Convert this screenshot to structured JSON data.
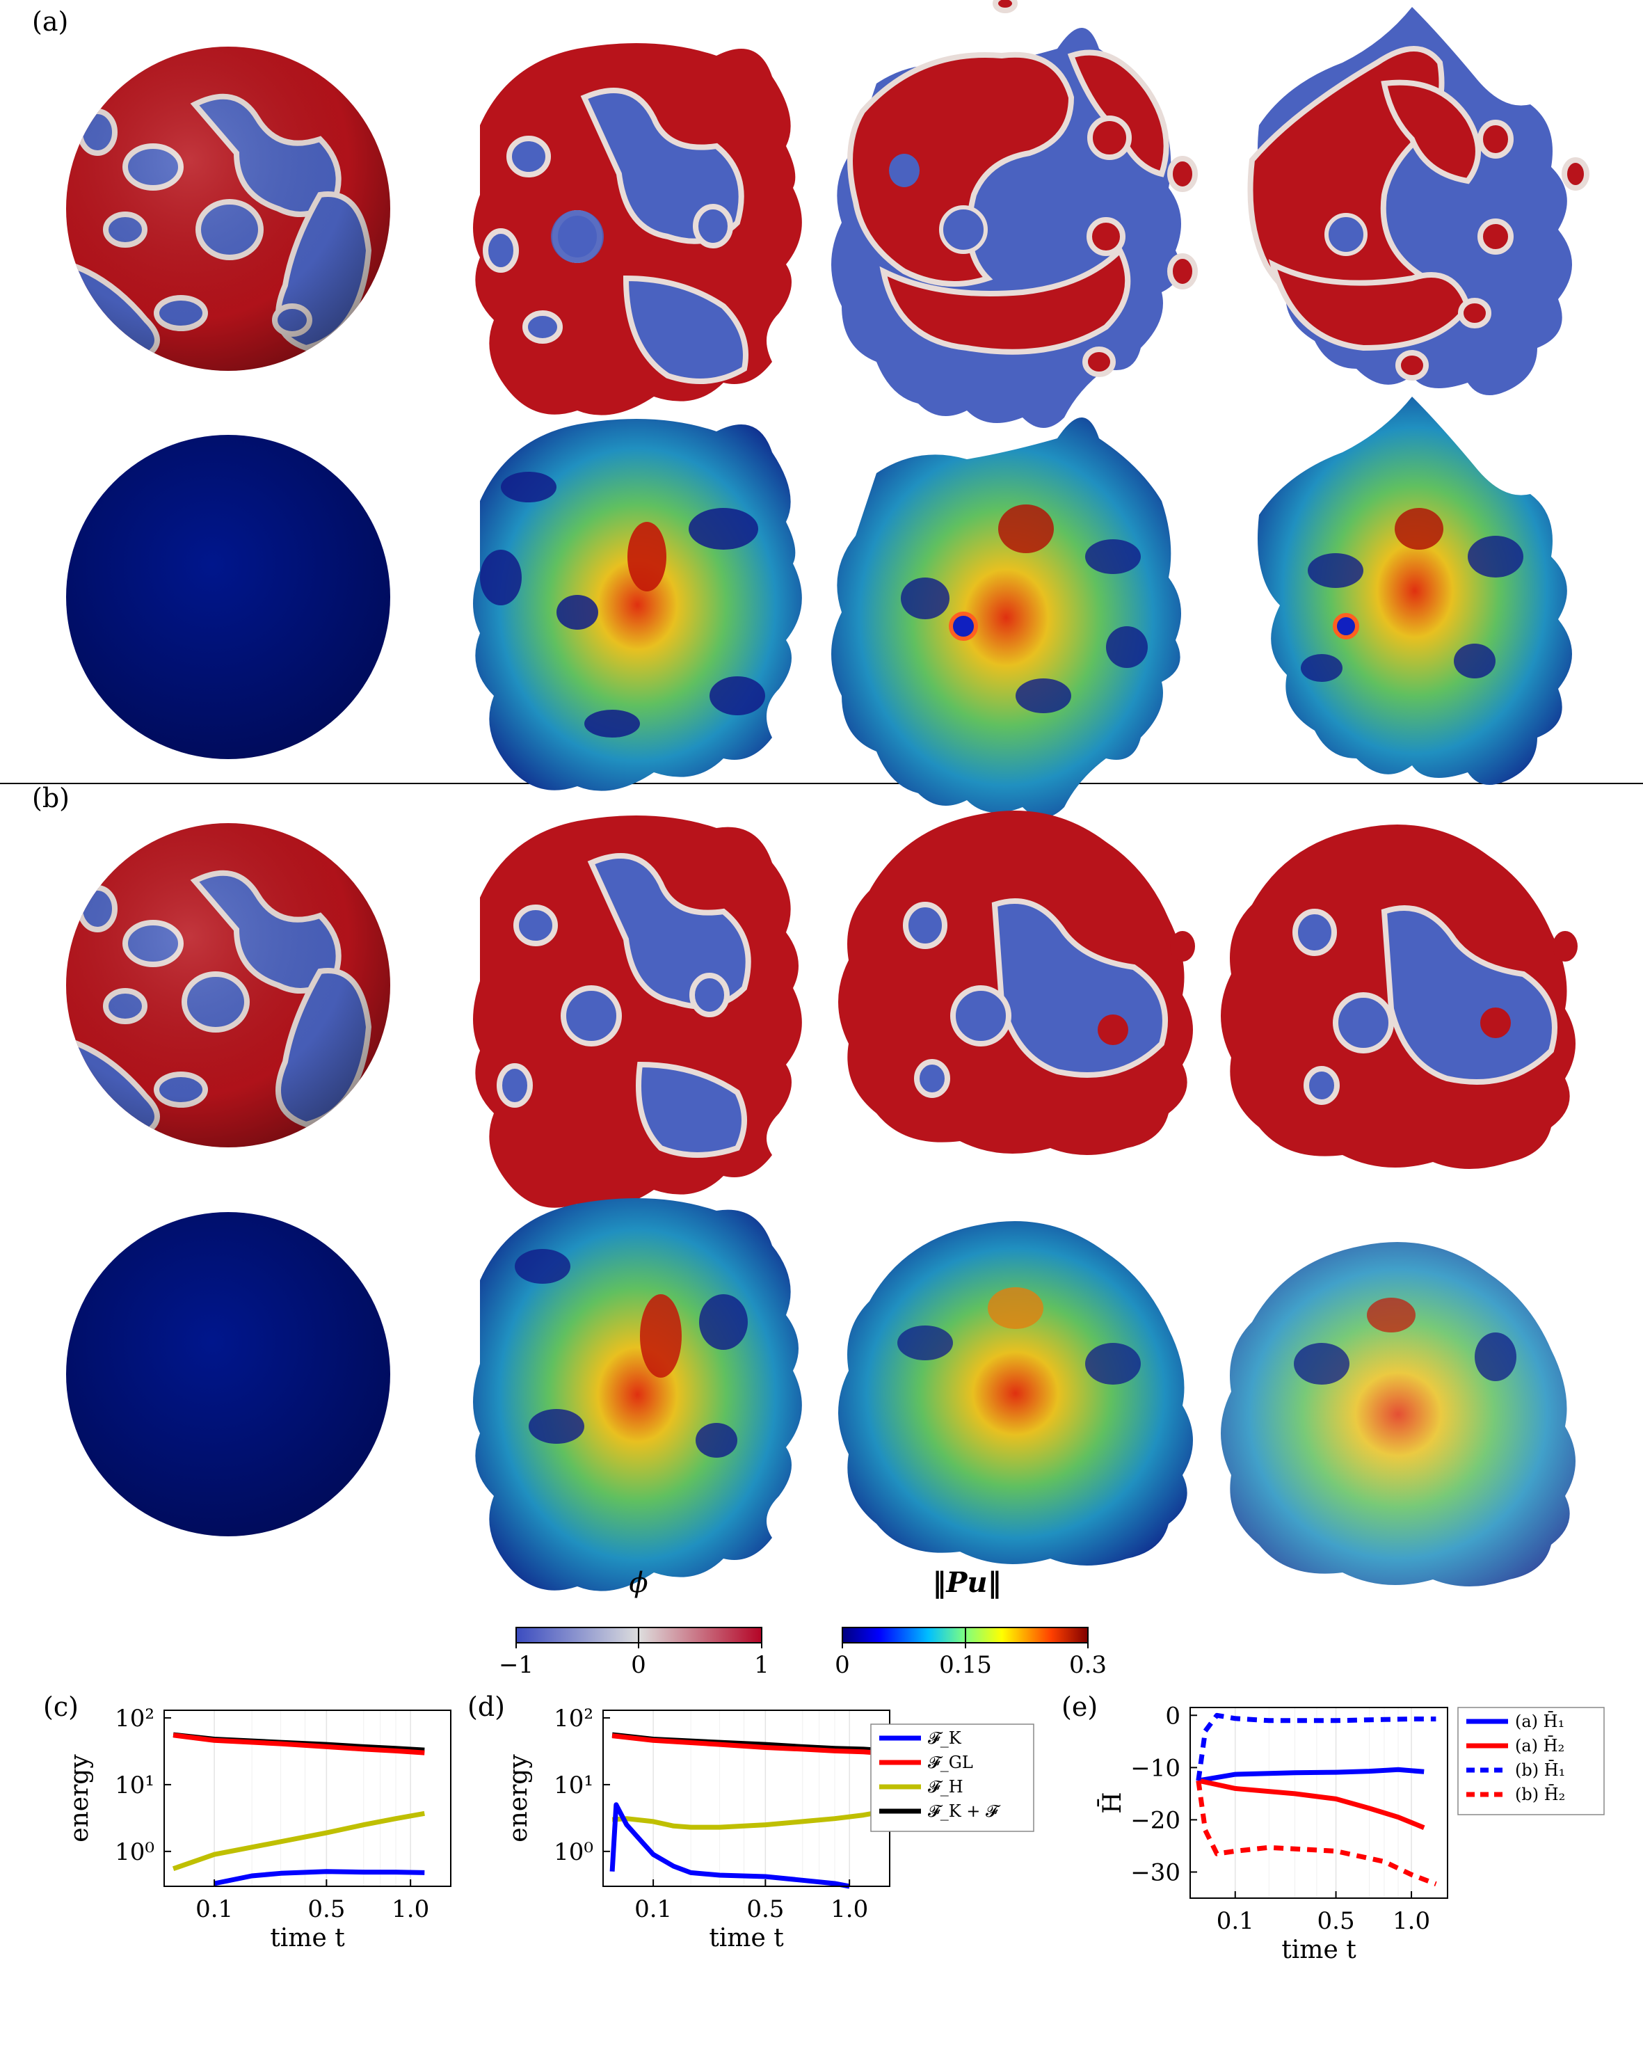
{
  "panels": {
    "a": "(a)",
    "b": "(b)",
    "c": "(c)",
    "d": "(d)",
    "e": "(e)"
  },
  "colorbars": {
    "phi": {
      "title": "ϕ",
      "ticks": [
        "−1",
        "0",
        "1"
      ],
      "colors": [
        "#3b4cc0",
        "#dddddd",
        "#b40426"
      ]
    },
    "pu": {
      "title": "‖Pu‖",
      "ticks": [
        "0",
        "0.15",
        "0.3"
      ],
      "colors": [
        "#00007f",
        "#0000ff",
        "#00bfff",
        "#7fff7f",
        "#ffff00",
        "#ff4000",
        "#7f0000"
      ]
    }
  },
  "colors": {
    "FK": "#0000ff",
    "FGL": "#ff0000",
    "FH": "#bfbf00",
    "Ftot": "#000000",
    "H1": "#0000ff",
    "H2": "#ff0000",
    "sphere_phi_red": "#b8131b",
    "sphere_phi_blue": "#4a62c0",
    "sphere_flow": "#00107a"
  },
  "chart_data": [
    {
      "id": "c",
      "type": "line",
      "xscale": "sqrt",
      "yscale": "log",
      "xlabel": "time t",
      "ylabel": "energy",
      "xticks": [
        "0.1",
        "0.5",
        "1.0"
      ],
      "yticks": [
        "10²",
        "10¹",
        "10⁰"
      ],
      "xlim": [
        0.02,
        1.3
      ],
      "ylim": [
        0.3,
        130
      ],
      "series": [
        {
          "key": "Ftot",
          "x": [
            0.03,
            0.1,
            0.3,
            0.5,
            0.7,
            0.9,
            1.1
          ],
          "y": [
            56,
            48,
            43,
            40,
            37,
            35,
            33
          ]
        },
        {
          "key": "FGL",
          "x": [
            0.03,
            0.1,
            0.3,
            0.5,
            0.7,
            0.9,
            1.1
          ],
          "y": [
            55,
            46,
            41,
            37,
            34,
            32,
            30
          ]
        },
        {
          "key": "FH",
          "x": [
            0.03,
            0.1,
            0.3,
            0.5,
            0.7,
            0.9,
            1.1
          ],
          "y": [
            0.55,
            0.9,
            1.4,
            1.9,
            2.5,
            3.1,
            3.7
          ]
        },
        {
          "key": "FK",
          "x": [
            0.1,
            0.2,
            0.3,
            0.5,
            0.7,
            0.9,
            1.1
          ],
          "y": [
            0.33,
            0.43,
            0.47,
            0.5,
            0.49,
            0.49,
            0.48
          ]
        }
      ]
    },
    {
      "id": "d",
      "type": "line",
      "xscale": "sqrt",
      "yscale": "log",
      "xlabel": "time t",
      "ylabel": "energy",
      "xticks": [
        "0.1",
        "0.5",
        "1.0"
      ],
      "yticks": [
        "10²",
        "10¹",
        "10⁰"
      ],
      "xlim": [
        0.02,
        1.3
      ],
      "ylim": [
        0.3,
        130
      ],
      "legend": [
        "𝓕_K",
        "𝓕_GL",
        "𝓕_H",
        "𝓕_K + 𝓕"
      ],
      "series": [
        {
          "key": "Ftot",
          "x": [
            0.03,
            0.1,
            0.3,
            0.5,
            0.7,
            0.9,
            1.1,
            1.2
          ],
          "y": [
            56,
            48,
            43,
            40,
            37,
            35,
            34,
            33
          ]
        },
        {
          "key": "FGL",
          "x": [
            0.03,
            0.1,
            0.3,
            0.5,
            0.7,
            0.9,
            1.1,
            1.2
          ],
          "y": [
            54,
            46,
            40,
            36,
            34,
            32,
            31,
            30
          ]
        },
        {
          "key": "FH",
          "x": [
            0.03,
            0.05,
            0.1,
            0.15,
            0.2,
            0.3,
            0.5,
            0.7,
            0.9,
            1.1,
            1.2
          ],
          "y": [
            3.0,
            3.1,
            2.8,
            2.4,
            2.3,
            2.3,
            2.5,
            2.8,
            3.1,
            3.5,
            3.8
          ]
        },
        {
          "key": "FK",
          "x": [
            0.03,
            0.035,
            0.05,
            0.08,
            0.1,
            0.15,
            0.2,
            0.3,
            0.5,
            0.7,
            0.9,
            1.0
          ],
          "y": [
            0.5,
            5.0,
            2.5,
            1.3,
            0.9,
            0.6,
            0.48,
            0.44,
            0.42,
            0.37,
            0.33,
            0.3
          ]
        }
      ]
    },
    {
      "id": "e",
      "type": "line",
      "xscale": "sqrt",
      "yscale": "linear",
      "xlabel": "time t",
      "ylabel": "H̄",
      "xticks": [
        "0.1",
        "0.5",
        "1.0"
      ],
      "yticks": [
        "0",
        "−10",
        "−20",
        "−30"
      ],
      "xlim": [
        0.02,
        1.3
      ],
      "ylim": [
        -35,
        1.5
      ],
      "legend": [
        "(a) H̄₁",
        "(a) H̄₂",
        "(b) H̄₁",
        "(b) H̄₂"
      ],
      "series": [
        {
          "key": "aH1",
          "x": [
            0.03,
            0.1,
            0.3,
            0.5,
            0.7,
            0.9,
            1.1
          ],
          "y": [
            -12.5,
            -11.3,
            -11.0,
            -10.9,
            -10.7,
            -10.4,
            -10.8
          ]
        },
        {
          "key": "aH2",
          "x": [
            0.03,
            0.1,
            0.3,
            0.5,
            0.7,
            0.9,
            1.1
          ],
          "y": [
            -12.5,
            -14.0,
            -15.0,
            -16.0,
            -17.8,
            -19.5,
            -21.5
          ]
        },
        {
          "key": "bH1",
          "x": [
            0.03,
            0.04,
            0.06,
            0.1,
            0.2,
            0.5,
            0.8,
            1.0,
            1.2
          ],
          "y": [
            -12.5,
            -3.0,
            0.0,
            -0.6,
            -1.0,
            -1.0,
            -0.8,
            -0.7,
            -0.7
          ]
        },
        {
          "key": "bH2",
          "x": [
            0.03,
            0.04,
            0.06,
            0.1,
            0.2,
            0.5,
            0.8,
            1.0,
            1.2
          ],
          "y": [
            -12.5,
            -22.0,
            -26.5,
            -26.0,
            -25.3,
            -26.0,
            -28.0,
            -30.5,
            -32.3
          ]
        }
      ]
    }
  ]
}
